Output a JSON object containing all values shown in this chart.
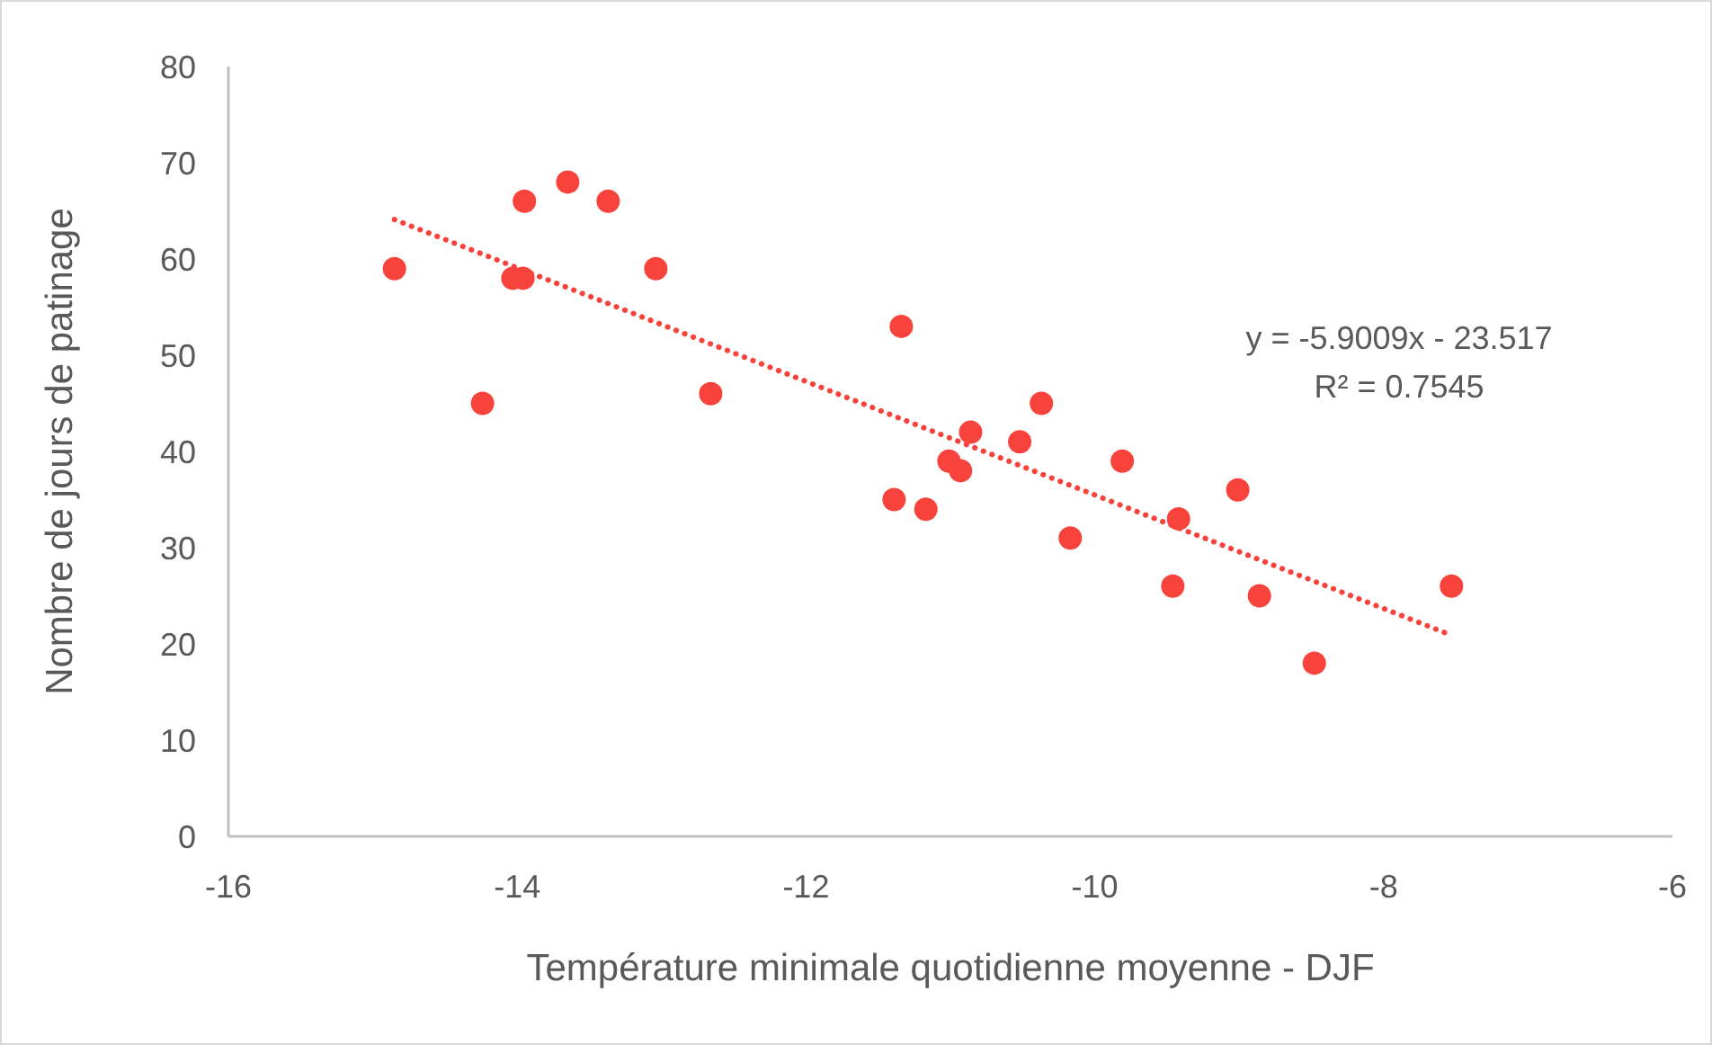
{
  "chart_data": {
    "type": "scatter",
    "xlabel": "Température minimale quotidienne moyenne - DJF",
    "ylabel": "Nombre de jours de patinage",
    "xlim": [
      -16,
      -6
    ],
    "xticks": [
      -16,
      -14,
      -12,
      -10,
      -8,
      -6
    ],
    "ylim": [
      0,
      80
    ],
    "yticks": [
      0,
      10,
      20,
      30,
      40,
      50,
      60,
      70,
      80
    ],
    "grid": false,
    "annotations": [
      "y = -5.9009x - 23.517",
      "R² = 0.7545"
    ],
    "series": [
      {
        "color": "#f8433c",
        "marker": "circle",
        "x": [
          -14.85,
          -14.24,
          -14.03,
          -13.96,
          -13.95,
          -13.65,
          -13.37,
          -13.04,
          -12.66,
          -11.39,
          -11.34,
          -11.17,
          -11.01,
          -10.93,
          -10.86,
          -10.52,
          -10.37,
          -10.17,
          -9.81,
          -9.46,
          -9.42,
          -9.01,
          -8.86,
          -8.48,
          -7.53
        ],
        "values": [
          59,
          45,
          58,
          58,
          66,
          68,
          66,
          59,
          46,
          35,
          53,
          34,
          39,
          38,
          42,
          41,
          45,
          31,
          39,
          26,
          33,
          36,
          25,
          18,
          26
        ]
      },
      {
        "type": "line",
        "color": "#f8433c",
        "marker": "none",
        "line_style": "dotted",
        "x": [
          -14.85,
          -7.53
        ],
        "values": [
          64.1,
          20.9
        ]
      }
    ]
  }
}
